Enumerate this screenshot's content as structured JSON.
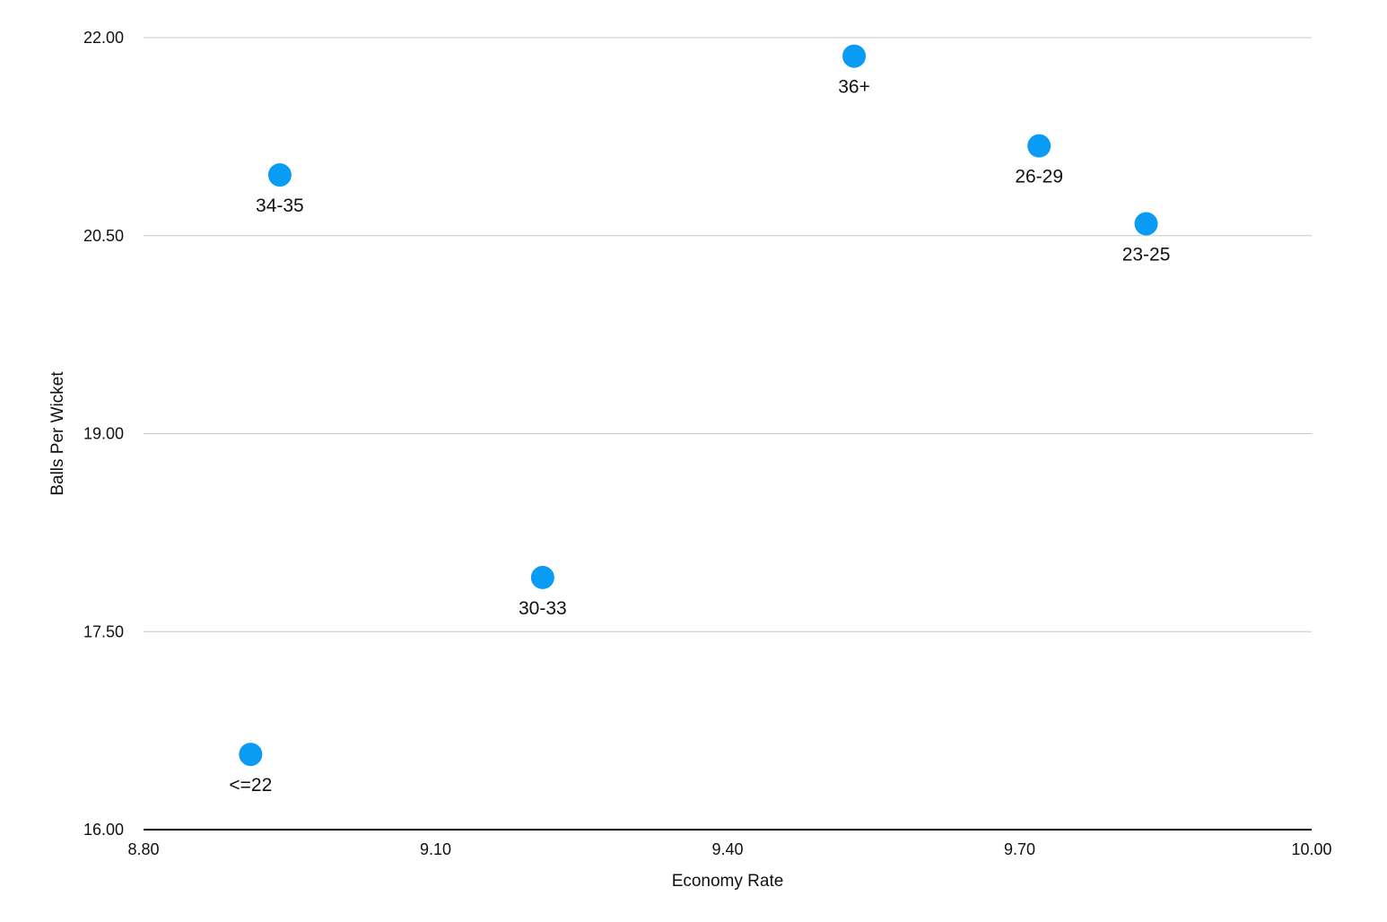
{
  "chart_data": {
    "type": "scatter",
    "title": "",
    "xlabel": "Economy Rate",
    "ylabel": "Balls Per Wicket",
    "xlim": [
      8.8,
      10.0
    ],
    "ylim": [
      16.0,
      22.0
    ],
    "x_ticks": [
      "8.80",
      "9.10",
      "9.40",
      "9.70",
      "10.00"
    ],
    "y_ticks": [
      "16.00",
      "17.50",
      "19.00",
      "20.50",
      "22.00"
    ],
    "x_tick_values": [
      8.8,
      9.1,
      9.4,
      9.7,
      10.0
    ],
    "y_tick_values": [
      16.0,
      17.5,
      19.0,
      20.5,
      22.0
    ],
    "grid": "horizontal",
    "legend": "none",
    "point_color": "#0a9cf5",
    "points": [
      {
        "label": "36+",
        "x": 9.53,
        "y": 21.86
      },
      {
        "label": "34-35",
        "x": 8.94,
        "y": 20.96
      },
      {
        "label": "26-29",
        "x": 9.72,
        "y": 21.18
      },
      {
        "label": "23-25",
        "x": 9.83,
        "y": 20.59
      },
      {
        "label": "30-33",
        "x": 9.21,
        "y": 17.91
      },
      {
        "label": "<=22",
        "x": 8.91,
        "y": 16.57
      }
    ]
  }
}
